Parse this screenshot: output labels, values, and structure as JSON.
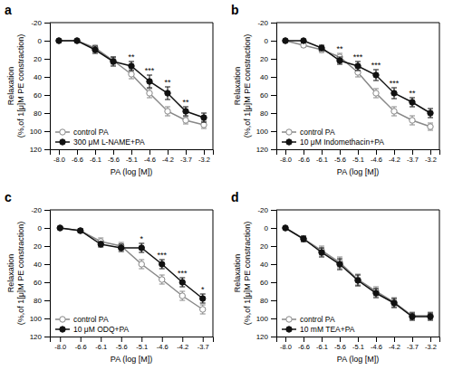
{
  "chart_data": [
    {
      "type": "line",
      "title": "a",
      "x_label": "PA (log [M])",
      "y_label": "Relaxation\n(%,of 1[μ]M PE constraction)",
      "categories": [
        "-8.0",
        "-6.6",
        "-6.1",
        "-5.6",
        "-5.1",
        "-4.6",
        "-4.2",
        "-3.7",
        "-3.2"
      ],
      "series": [
        {
          "name": "control PA",
          "color": "#888888",
          "marker": "circle-open",
          "values": [
            0,
            0,
            8,
            22,
            37,
            58,
            78,
            88,
            93
          ],
          "errors": [
            1,
            1,
            3,
            4,
            5,
            5,
            5,
            4,
            4
          ]
        },
        {
          "name": "300 μM L-NAME+PA",
          "color": "#111111",
          "marker": "circle",
          "values": [
            0,
            0,
            10,
            23,
            28,
            45,
            58,
            78,
            85
          ],
          "errors": [
            1,
            1,
            4,
            5,
            5,
            7,
            7,
            5,
            5
          ]
        }
      ],
      "annotations": [
        {
          "text": "**",
          "x": "-5.1"
        },
        {
          "text": "***",
          "x": "-4.6"
        },
        {
          "text": "**",
          "x": "-4.2"
        },
        {
          "text": "**",
          "x": "-3.7"
        }
      ],
      "ylim": [
        120,
        -20
      ],
      "yticks": [
        -20,
        0,
        20,
        40,
        60,
        80,
        100,
        120
      ],
      "legend": "lower left",
      "grid": false
    },
    {
      "type": "line",
      "title": "b",
      "x_label": "PA (log [M])",
      "y_label": "Relaxation\n(%,of 1[μ]M PE constraction)",
      "categories": [
        "-8.0",
        "-6.6",
        "-6.1",
        "-5.6",
        "-5.1",
        "-4.6",
        "-4.2",
        "-3.7",
        "-3.2"
      ],
      "series": [
        {
          "name": "control PA",
          "color": "#888888",
          "marker": "circle-open",
          "values": [
            0,
            5,
            10,
            18,
            35,
            58,
            78,
            88,
            95
          ],
          "errors": [
            1,
            2,
            3,
            4,
            5,
            5,
            5,
            5,
            4
          ]
        },
        {
          "name": "10 μM Indomethacin+PA",
          "color": "#111111",
          "marker": "circle",
          "values": [
            0,
            0,
            8,
            22,
            28,
            38,
            58,
            68,
            80
          ],
          "errors": [
            1,
            1,
            3,
            4,
            5,
            6,
            6,
            5,
            5
          ]
        }
      ],
      "annotations": [
        {
          "text": "**",
          "x": "-5.6"
        },
        {
          "text": "***",
          "x": "-5.1"
        },
        {
          "text": "***",
          "x": "-4.6"
        },
        {
          "text": "***",
          "x": "-4.2"
        },
        {
          "text": "**",
          "x": "-3.7"
        }
      ],
      "ylim": [
        120,
        -20
      ],
      "yticks": [
        -20,
        0,
        20,
        40,
        60,
        80,
        100,
        120
      ],
      "legend": "lower left",
      "grid": false
    },
    {
      "type": "line",
      "title": "c",
      "x_label": "PA (log [M])",
      "y_label": "Relaxation\n(%,of 1[μ]M PE constraction)",
      "categories": [
        "-8.0",
        "-6.6",
        "-6.1",
        "-5.6",
        "-5.1",
        "-4.6",
        "-4.2",
        "-3.7"
      ],
      "series": [
        {
          "name": "control PA",
          "color": "#888888",
          "marker": "circle-open",
          "values": [
            0,
            3,
            15,
            20,
            40,
            57,
            75,
            90
          ],
          "errors": [
            1,
            2,
            4,
            4,
            5,
            5,
            5,
            5
          ]
        },
        {
          "name": "10 μM ODQ+PA",
          "color": "#111111",
          "marker": "circle",
          "values": [
            0,
            3,
            18,
            22,
            22,
            40,
            60,
            78
          ],
          "errors": [
            1,
            2,
            3,
            4,
            5,
            5,
            5,
            5
          ]
        }
      ],
      "annotations": [
        {
          "text": "*",
          "x": "-5.1"
        },
        {
          "text": "***",
          "x": "-4.6"
        },
        {
          "text": "***",
          "x": "-4.2"
        },
        {
          "text": "*",
          "x": "-3.7"
        }
      ],
      "ylim": [
        120,
        -20
      ],
      "yticks": [
        -20,
        0,
        20,
        40,
        60,
        80,
        100,
        120
      ],
      "legend": "lower left",
      "grid": false
    },
    {
      "type": "line",
      "title": "d",
      "x_label": "PA (log [M])",
      "y_label": "Relaxation\n(%,of 1[μ]M PE constraction)",
      "categories": [
        "-8.0",
        "-6.6",
        "-6.1",
        "-5.6",
        "-5.1",
        "-4.6",
        "-4.2",
        "-3.7",
        "-3.2"
      ],
      "series": [
        {
          "name": "control PA",
          "color": "#888888",
          "marker": "circle-open",
          "values": [
            0,
            12,
            25,
            38,
            57,
            70,
            82,
            97,
            97
          ],
          "errors": [
            1,
            3,
            5,
            6,
            6,
            5,
            5,
            4,
            4
          ]
        },
        {
          "name": "10 mM TEA+PA",
          "color": "#111111",
          "marker": "circle",
          "values": [
            0,
            12,
            27,
            40,
            58,
            72,
            83,
            98,
            98
          ],
          "errors": [
            1,
            3,
            5,
            6,
            6,
            5,
            5,
            4,
            4
          ]
        }
      ],
      "ylim": [
        120,
        -20
      ],
      "yticks": [
        -20,
        0,
        20,
        40,
        60,
        80,
        100,
        120
      ],
      "legend": "lower left",
      "grid": false
    }
  ]
}
